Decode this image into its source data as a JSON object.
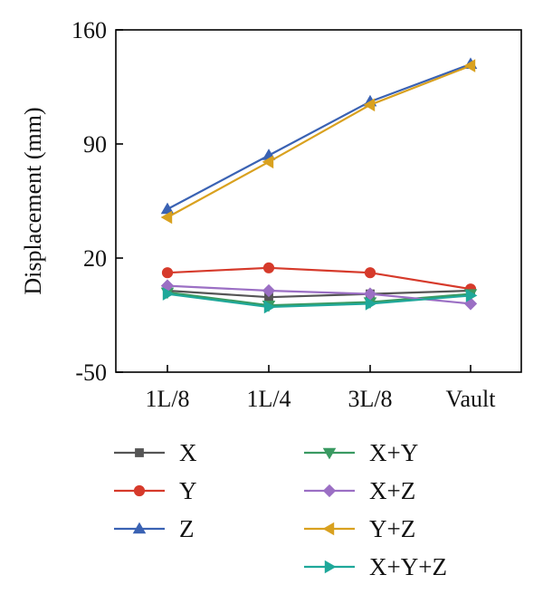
{
  "chart_data": {
    "type": "line",
    "categories": [
      "1L/8",
      "1L/4",
      "3L/8",
      "Vault"
    ],
    "ylabel": "Displacement (mm)",
    "xlabel": "",
    "ylim": [
      -50,
      160
    ],
    "yticks": [
      "-50",
      "20",
      "90",
      "160"
    ],
    "grid": false,
    "legend_position": "bottom",
    "series": [
      {
        "name": "X",
        "values": [
          0,
          -4,
          -2,
          0
        ],
        "color": "#555555",
        "marker": "square"
      },
      {
        "name": "Y",
        "values": [
          11,
          14,
          11,
          1
        ],
        "color": "#d63a2b",
        "marker": "circle"
      },
      {
        "name": "Z",
        "values": [
          50,
          83,
          116,
          139
        ],
        "color": "#3a62b3",
        "marker": "triangle-up"
      },
      {
        "name": "X+Y",
        "values": [
          -1,
          -9,
          -7,
          -2
        ],
        "color": "#3a9a62",
        "marker": "triangle-down"
      },
      {
        "name": "X+Z",
        "values": [
          3,
          0,
          -2,
          -8
        ],
        "color": "#9b6fc4",
        "marker": "diamond"
      },
      {
        "name": "Y+Z",
        "values": [
          45,
          79,
          114,
          138
        ],
        "color": "#d9a11f",
        "marker": "triangle-left"
      },
      {
        "name": "X+Y+Z",
        "values": [
          -2,
          -10,
          -8,
          -3
        ],
        "color": "#1fa89a",
        "marker": "triangle-right"
      }
    ]
  }
}
